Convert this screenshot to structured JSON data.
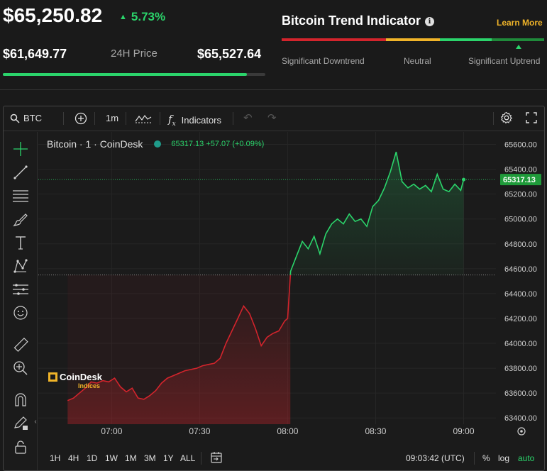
{
  "header": {
    "price": "$65,250.82",
    "change": "5.73%",
    "low": "$61,649.77",
    "range_label": "24H Price",
    "high": "$65,527.64",
    "range_fill_fraction": 0.93
  },
  "trend": {
    "title": "Bitcoin Trend Indicator",
    "learn_more": "Learn More",
    "labels": [
      "Significant Downtrend",
      "Neutral",
      "Significant Uptrend"
    ]
  },
  "toolbar": {
    "symbol": "BTC",
    "interval": "1m",
    "indicators": "Indicators"
  },
  "legend": {
    "title": "Bitcoin · 1 · CoinDesk",
    "values": "65317.13  +57.07 (+0.09%)"
  },
  "logo": {
    "name": "CoinDesk",
    "sub": "Indices"
  },
  "chart_data": {
    "type": "line",
    "y_ticks": [
      "65600.00",
      "65400.00",
      "65200.00",
      "65000.00",
      "64800.00",
      "64600.00",
      "64400.00",
      "64200.00",
      "64000.00",
      "63800.00",
      "63600.00",
      "63400.00"
    ],
    "x_ticks": [
      "07:00",
      "07:30",
      "08:00",
      "08:30",
      "09:00"
    ],
    "ylim": [
      63350,
      65700
    ],
    "last_price": "65317.13",
    "base_price": 64550,
    "colors": {
      "up": "#2bd46b",
      "down": "#d3242c"
    },
    "series": [
      {
        "x": [
          "06:45",
          "06:47",
          "06:49",
          "06:51",
          "06:53",
          "06:55",
          "06:57",
          "06:59",
          "07:01",
          "07:03",
          "07:05",
          "07:07",
          "07:09",
          "07:11",
          "07:13",
          "07:15",
          "07:17",
          "07:19",
          "07:21",
          "07:23",
          "07:25",
          "07:27",
          "07:29",
          "07:31",
          "07:33",
          "07:35",
          "07:37",
          "07:39",
          "07:41",
          "07:43",
          "07:45",
          "07:47",
          "07:49",
          "07:51",
          "07:53",
          "07:55",
          "07:57",
          "07:59",
          "08:00",
          "08:01",
          "08:03",
          "08:05",
          "08:07",
          "08:09",
          "08:11",
          "08:13",
          "08:15",
          "08:17",
          "08:19",
          "08:21",
          "08:23",
          "08:25",
          "08:27",
          "08:29",
          "08:31",
          "08:33",
          "08:35",
          "08:37",
          "08:39",
          "08:41",
          "08:43",
          "08:45",
          "08:47",
          "08:49",
          "08:51",
          "08:53",
          "08:55",
          "08:57",
          "08:59",
          "09:00"
        ],
        "values": [
          63540,
          63560,
          63600,
          63640,
          63690,
          63680,
          63700,
          63690,
          63720,
          63650,
          63610,
          63640,
          63560,
          63550,
          63580,
          63620,
          63680,
          63720,
          63740,
          63760,
          63780,
          63790,
          63800,
          63820,
          63830,
          63840,
          63880,
          64000,
          64100,
          64200,
          64300,
          64240,
          64120,
          63980,
          64050,
          64080,
          64100,
          64180,
          64200,
          64580,
          64700,
          64820,
          64760,
          64860,
          64720,
          64880,
          64960,
          65000,
          64960,
          65040,
          64980,
          65000,
          64940,
          65100,
          65150,
          65250,
          65380,
          65540,
          65300,
          65250,
          65280,
          65240,
          65270,
          65220,
          65360,
          65240,
          65220,
          65280,
          65230,
          65317
        ]
      }
    ]
  },
  "bottom": {
    "ranges": [
      "1H",
      "4H",
      "1D",
      "1W",
      "1M",
      "3M",
      "1Y",
      "ALL"
    ],
    "time": "09:03:42 (UTC)",
    "percent": "%",
    "log": "log",
    "auto": "auto"
  }
}
